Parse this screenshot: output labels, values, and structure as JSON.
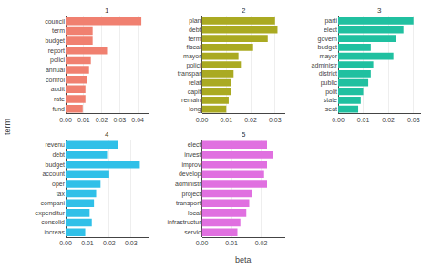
{
  "xlabel": "beta",
  "ylabel": "term",
  "chart_data": [
    {
      "type": "bar",
      "orientation": "horizontal",
      "title": "1",
      "color": "#F08070",
      "grid": true,
      "categories": [
        "fund",
        "rate",
        "audit",
        "control",
        "annual",
        "polici",
        "report",
        "budget",
        "term",
        "council"
      ],
      "values": [
        0.0095,
        0.011,
        0.011,
        0.012,
        0.013,
        0.014,
        0.023,
        0.015,
        0.015,
        0.042
      ],
      "xlim": [
        0,
        0.046
      ],
      "xticks": [
        {
          "value": 0,
          "label": "0.00"
        },
        0.01,
        0.02,
        0.03,
        0.04
      ]
    },
    {
      "type": "bar",
      "orientation": "horizontal",
      "title": "2",
      "color": "#AAAA22",
      "grid": true,
      "categories": [
        "long",
        "remain",
        "capit",
        "relat",
        "transpar",
        "polici",
        "mayor",
        "fiscal",
        "term",
        "debt",
        "plan"
      ],
      "values": [
        0.01,
        0.011,
        0.012,
        0.012,
        0.013,
        0.016,
        0.015,
        0.021,
        0.027,
        0.031,
        0.03
      ],
      "xlim": [
        0,
        0.034
      ],
      "xticks": [
        {
          "value": 0,
          "label": "0.00"
        },
        0.01,
        0.02,
        0.03
      ]
    },
    {
      "type": "bar",
      "orientation": "horizontal",
      "title": "3",
      "color": "#20C0A0",
      "grid": true,
      "categories": [
        "seat",
        "state",
        "polit",
        "public",
        "district",
        "administr",
        "mayor",
        "budget",
        "govern",
        "elect",
        "parti"
      ],
      "values": [
        0.008,
        0.009,
        0.01,
        0.012,
        0.013,
        0.014,
        0.022,
        0.013,
        0.023,
        0.026,
        0.03
      ],
      "xlim": [
        0,
        0.033
      ],
      "xticks": [
        {
          "value": 0,
          "label": "0.00"
        },
        0.01,
        0.02,
        0.03
      ]
    },
    {
      "type": "bar",
      "orientation": "horizontal",
      "title": "4",
      "color": "#30C0E8",
      "grid": true,
      "categories": [
        "increas",
        "consolid",
        "expenditur",
        "compani",
        "tax",
        "oper",
        "account",
        "budget",
        "debt",
        "revenu"
      ],
      "values": [
        0.009,
        0.012,
        0.011,
        0.013,
        0.014,
        0.016,
        0.02,
        0.034,
        0.019,
        0.024
      ],
      "xlim": [
        0,
        0.038
      ],
      "xticks": [
        {
          "value": 0,
          "label": "0.00"
        },
        0.01,
        0.02,
        0.03
      ]
    },
    {
      "type": "bar",
      "orientation": "horizontal",
      "title": "5",
      "color": "#E070E0",
      "grid": true,
      "categories": [
        "servic",
        "infrastructur",
        "local",
        "transport",
        "project",
        "administr",
        "develop",
        "improv",
        "invest",
        "elect"
      ],
      "values": [
        0.012,
        0.013,
        0.015,
        0.016,
        0.017,
        0.022,
        0.021,
        0.022,
        0.024,
        0.022
      ],
      "xlim": [
        0,
        0.028
      ],
      "xticks": [
        {
          "value": 0,
          "label": "0.00"
        },
        0.01,
        0.02
      ]
    }
  ]
}
